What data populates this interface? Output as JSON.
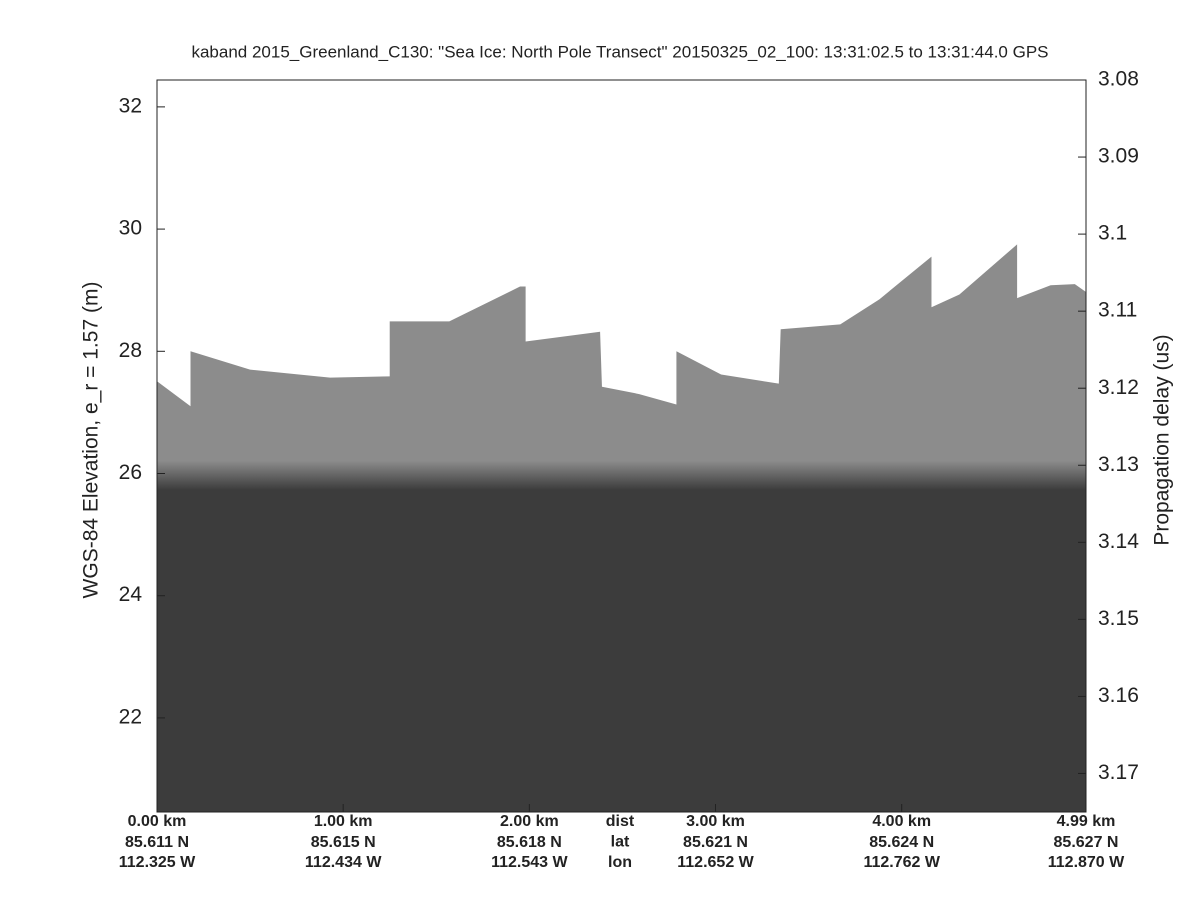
{
  "chart_data": {
    "type": "echogram",
    "title": "kaband 2015_Greenland_C130: \"Sea Ice: North Pole Transect\"  20150325_02_100: 13:31:02.5 to 13:31:44.0 GPS",
    "y_label": "WGS-84 Elevation, e_r = 1.57 (m)",
    "y2_label": "Propagation delay (us)",
    "ylim": [
      20.46,
      32.44
    ],
    "yticks": [
      22,
      24,
      26,
      28,
      30,
      32
    ],
    "y2lim": [
      3.08,
      3.175
    ],
    "y2ticks": [
      3.08,
      3.09,
      3.1,
      3.11,
      3.12,
      3.13,
      3.14,
      3.15,
      3.16,
      3.17
    ],
    "xlim": [
      0,
      4.99
    ],
    "xticks": [
      {
        "value": 0,
        "label": "0.00 km"
      },
      {
        "value": 1,
        "label": "1.00 km"
      },
      {
        "value": 2,
        "label": "2.00 km"
      },
      {
        "value": 3,
        "label": "3.00 km"
      },
      {
        "value": 4,
        "label": "4.00 km"
      },
      {
        "value": 4.99,
        "label": "4.99 km"
      }
    ],
    "lat_labels": [
      "85.611 N",
      "85.615 N",
      "85.618 N",
      "85.621 N",
      "85.624 N",
      "85.627 N"
    ],
    "lon_labels": [
      "112.325 W",
      "112.434 W",
      "112.543 W",
      "112.652 W",
      "112.762 W",
      "112.870 W"
    ],
    "row_labels": [
      "dist",
      "lat",
      "lon"
    ],
    "x": [
      0,
      0.18,
      0.18,
      0.5,
      0.93,
      1.25,
      1.25,
      1.57,
      1.95,
      1.98,
      1.98,
      2.38,
      2.39,
      2.59,
      2.79,
      2.79,
      3.03,
      3.34,
      3.35,
      3.67,
      3.88,
      4.16,
      4.16,
      4.31,
      4.62,
      4.62,
      4.8,
      4.93,
      4.99
    ],
    "values": [
      27.51,
      27.1,
      28.0,
      27.7,
      27.57,
      27.59,
      28.49,
      28.49,
      29.06,
      29.06,
      28.16,
      28.32,
      27.42,
      27.3,
      27.13,
      28.0,
      27.62,
      27.47,
      28.36,
      28.44,
      28.85,
      29.55,
      28.72,
      28.93,
      29.75,
      28.87,
      29.08,
      29.1,
      28.97
    ],
    "color": "#8c8c8c",
    "deep_color": "#3c3c3c"
  }
}
